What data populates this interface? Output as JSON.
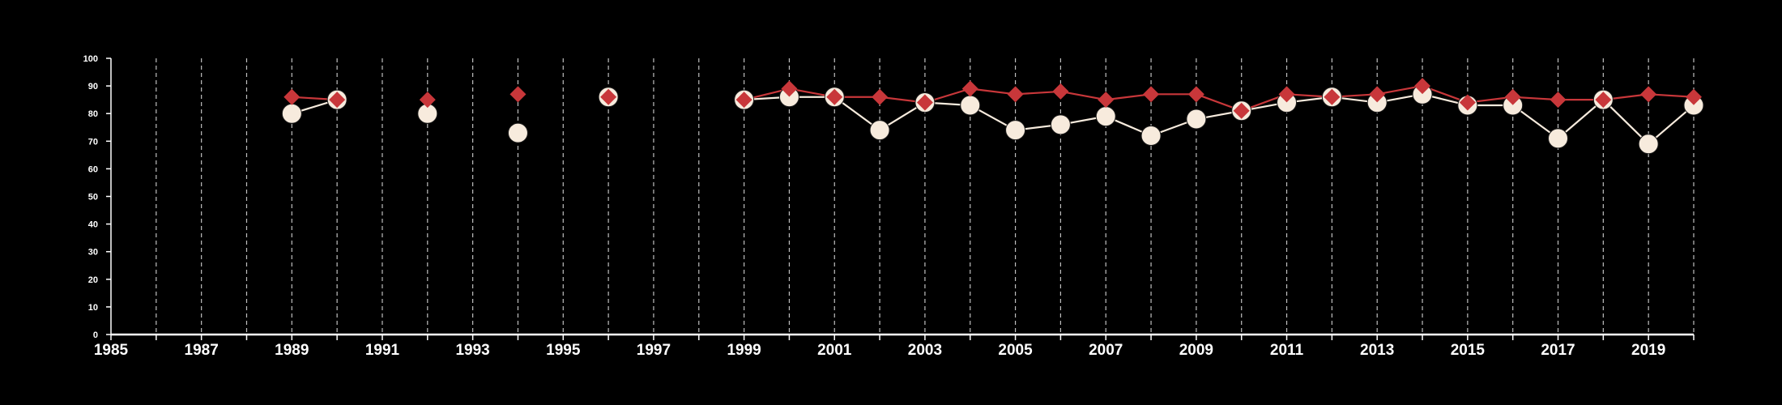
{
  "chart_data": {
    "type": "line",
    "title": "",
    "xlabel": "",
    "ylabel": "",
    "xlim": [
      1985,
      2020
    ],
    "ylim": [
      0,
      100
    ],
    "x_ticks": [
      1985,
      1987,
      1989,
      1991,
      1993,
      1995,
      1997,
      1999,
      2001,
      2003,
      2005,
      2007,
      2009,
      2011,
      2013,
      2015,
      2017,
      2019
    ],
    "y_ticks": [
      0,
      10,
      20,
      30,
      40,
      50,
      60,
      70,
      80,
      90,
      100
    ],
    "grid": "vertical dashed lines at each year",
    "colors": {
      "background": "#000000",
      "axis": "#ffffff",
      "grid": "#bfbfbf",
      "series_red": "#c8373a",
      "series_cream": "#f7ebdd",
      "marker_outline": "#1a1a1a"
    },
    "series": [
      {
        "marker": "diamond",
        "color": "#c8373a",
        "points": [
          [
            1989,
            86
          ],
          [
            1990,
            85
          ],
          [
            1992,
            85
          ],
          [
            1994,
            87
          ],
          [
            1996,
            86
          ],
          [
            1999,
            85
          ],
          [
            2000,
            89
          ],
          [
            2001,
            86
          ],
          [
            2002,
            86
          ],
          [
            2003,
            84
          ],
          [
            2004,
            89
          ],
          [
            2005,
            87
          ],
          [
            2006,
            88
          ],
          [
            2007,
            85
          ],
          [
            2008,
            87
          ],
          [
            2009,
            87
          ],
          [
            2010,
            81
          ],
          [
            2011,
            87
          ],
          [
            2012,
            86
          ],
          [
            2013,
            87
          ],
          [
            2014,
            90
          ],
          [
            2015,
            84
          ],
          [
            2016,
            86
          ],
          [
            2017,
            85
          ],
          [
            2018,
            85
          ],
          [
            2019,
            87
          ],
          [
            2020,
            86
          ]
        ]
      },
      {
        "marker": "circle",
        "color": "#f7ebdd",
        "points": [
          [
            1989,
            80
          ],
          [
            1990,
            85
          ],
          [
            1992,
            80
          ],
          [
            1994,
            73
          ],
          [
            1996,
            86
          ],
          [
            1999,
            85
          ],
          [
            2000,
            86
          ],
          [
            2001,
            86
          ],
          [
            2002,
            74
          ],
          [
            2003,
            84
          ],
          [
            2004,
            83
          ],
          [
            2005,
            74
          ],
          [
            2006,
            76
          ],
          [
            2007,
            79
          ],
          [
            2008,
            72
          ],
          [
            2009,
            78
          ],
          [
            2010,
            81
          ],
          [
            2011,
            84
          ],
          [
            2012,
            86
          ],
          [
            2013,
            84
          ],
          [
            2014,
            87
          ],
          [
            2015,
            83
          ],
          [
            2016,
            83
          ],
          [
            2017,
            71
          ],
          [
            2018,
            85
          ],
          [
            2019,
            69
          ],
          [
            2020,
            83
          ]
        ]
      }
    ]
  }
}
